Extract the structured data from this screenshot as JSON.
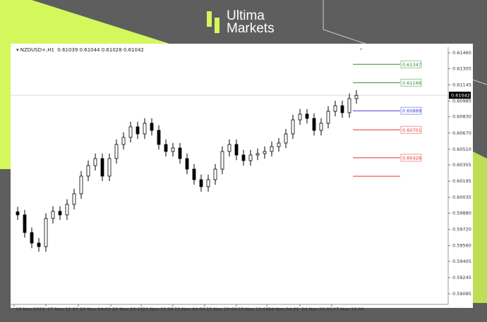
{
  "brand": {
    "line1": "Ultima",
    "line2": "Markets",
    "accent": "#d4f75c"
  },
  "chart_header": {
    "symbol": "NZDUSD+,H1",
    "ohlc": "0.61039 0.61044 0.61028 0.61042"
  },
  "chart_data": {
    "type": "candlestick",
    "symbol": "NZDUSD+",
    "timeframe": "H1",
    "ylim": [
      0.59085,
      0.6146
    ],
    "y_ticks": [
      "0.61460",
      "0.61305",
      "0.61145",
      "0.60985",
      "0.60830",
      "0.60670",
      "0.60510",
      "0.60355",
      "0.60195",
      "0.60035",
      "0.59880",
      "0.59720",
      "0.59560",
      "0.59405",
      "0.59245",
      "0.59085"
    ],
    "x_ticks": [
      "16 Nov 2023",
      "17 Nov 12:00",
      "20 Nov 04:00",
      "20 Nov 20:00",
      "21 Nov 12:00",
      "22 Nov 04:00",
      "22 Nov 20:00",
      "23 Nov 12:00",
      "24 Nov 04:00",
      "24 Nov 20:00",
      "27 Nov 12:00"
    ],
    "closes": [
      0.59863,
      0.59689,
      0.59585,
      0.5955,
      0.59828,
      0.59898,
      0.59863,
      0.59967,
      0.60071,
      0.60245,
      0.60349,
      0.60418,
      0.60245,
      0.60418,
      0.60557,
      0.60627,
      0.60731,
      0.60661,
      0.60766,
      0.60696,
      0.60557,
      0.60488,
      0.60522,
      0.60418,
      0.60314,
      0.6021,
      0.60141,
      0.6021,
      0.60314,
      0.60488,
      0.60557,
      0.60453,
      0.60398,
      0.60453,
      0.60467,
      0.60488,
      0.60536,
      0.60571,
      0.60661,
      0.608,
      0.60856,
      0.60814,
      0.60696,
      0.60766,
      0.60884,
      0.60939,
      0.6087,
      0.61009,
      0.61042
    ],
    "current_price": "0.61042",
    "levels": [
      {
        "price": "0.61347",
        "color": "#2e8b2e"
      },
      {
        "price": "0.61166",
        "color": "#2e8b2e"
      },
      {
        "price": "0.60889",
        "color": "#3a3ae0"
      },
      {
        "price": "0.60701",
        "color": "#e83030"
      },
      {
        "price": "0.60426",
        "color": "#e83030"
      },
      {
        "price": "",
        "value": 0.60244,
        "color": "#e83030"
      }
    ]
  }
}
